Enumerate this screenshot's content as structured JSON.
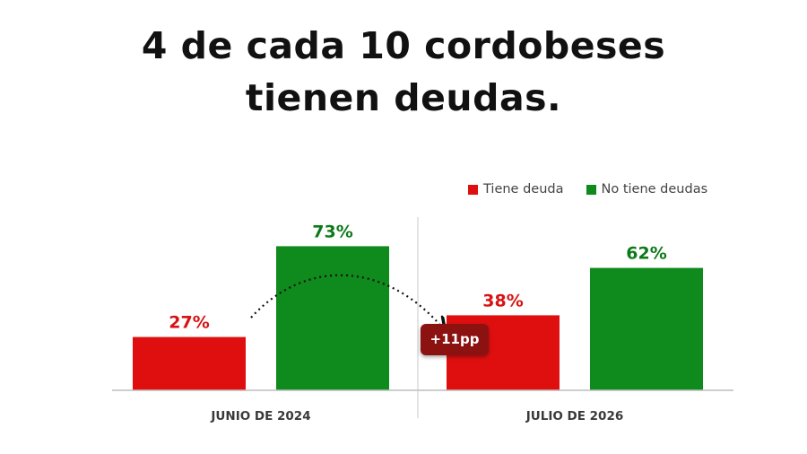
{
  "title": {
    "line1": "4 de cada 10 cordobeses",
    "line2": "tienen deudas."
  },
  "legend": {
    "items": [
      {
        "label": "Tiene deuda",
        "color": "#e00f0f"
      },
      {
        "label": "No tiene deudas",
        "color": "#0f8a1c"
      }
    ]
  },
  "annotation": {
    "label": "+11pp",
    "color": "#8c1212"
  },
  "chart_data": {
    "type": "bar",
    "title": "4 de cada 10 cordobeses tienen deudas.",
    "categories": [
      "JUNIO DE 2024",
      "JULIO DE 2026"
    ],
    "series": [
      {
        "name": "Tiene deuda",
        "values": [
          27,
          38
        ],
        "labels": [
          "27%",
          "38%"
        ],
        "color": "#e00f0f",
        "label_color": "#d81313"
      },
      {
        "name": "No tiene deudas",
        "values": [
          73,
          62
        ],
        "labels": [
          "73%",
          "62%"
        ],
        "color": "#0f8a1c",
        "label_color": "#0d7a19"
      }
    ],
    "ylim": [
      0,
      100
    ],
    "unit": "%",
    "grid": false,
    "legend_position": "top-right",
    "annotations": [
      {
        "text": "+11pp",
        "from_category": "JUNIO DE 2024",
        "to_category": "JULIO DE 2026",
        "series": "Tiene deuda"
      }
    ]
  }
}
